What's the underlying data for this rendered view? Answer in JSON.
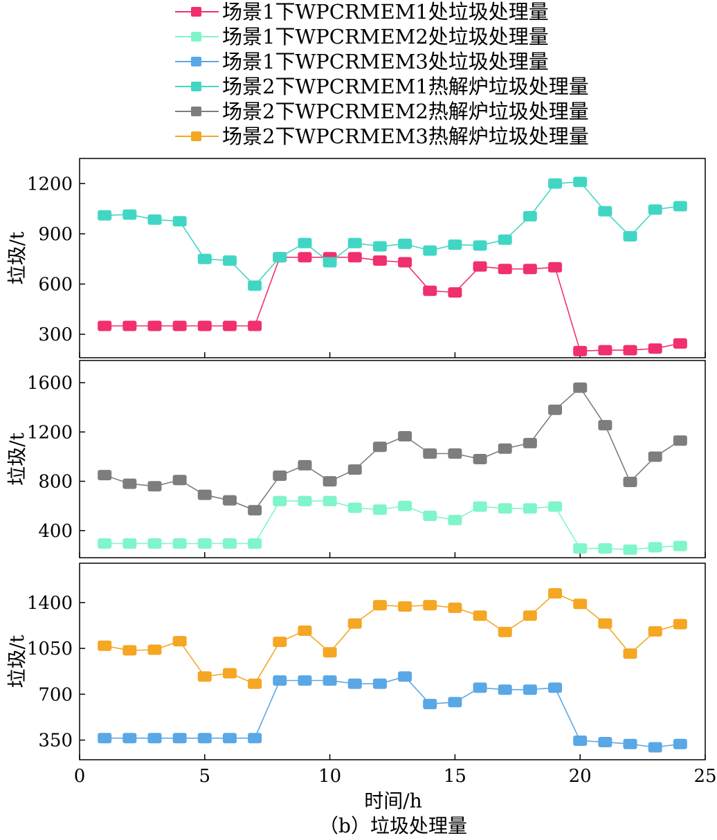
{
  "caption": "（b）垃圾处理量",
  "chart_data": {
    "type": "line",
    "xlabel": "时间/h",
    "x": [
      1,
      2,
      3,
      4,
      5,
      6,
      7,
      8,
      9,
      10,
      11,
      12,
      13,
      14,
      15,
      16,
      17,
      18,
      19,
      20,
      21,
      22,
      23,
      24
    ],
    "xlim": [
      0,
      25
    ],
    "xticks": [
      "0",
      "5",
      "10",
      "15",
      "20",
      "25"
    ],
    "legend": [
      {
        "name": "场景1下WPCRMEM1处垃圾处理量",
        "color": "#f0306c"
      },
      {
        "name": "场景1下WPCRMEM2处垃圾处理量",
        "color": "#7ff5c9"
      },
      {
        "name": "场景1下WPCRMEM3处垃圾处理量",
        "color": "#5aa7e6"
      },
      {
        "name": "场景2下WPCRMEM1热解炉垃圾处理量",
        "color": "#41d6c4"
      },
      {
        "name": "场景2下WPCRMEM2热解炉垃圾处理量",
        "color": "#7d7d7d"
      },
      {
        "name": "场景2下WPCRMEM3热解炉垃圾处理量",
        "color": "#f5a623"
      }
    ],
    "panels": [
      {
        "ylabel": "垃圾/t",
        "ylim": [
          160,
          1350
        ],
        "yticks": [
          "300",
          "600",
          "900",
          "1200"
        ],
        "series": [
          {
            "name": "场景1下WPCRMEM1处垃圾处理量",
            "color": "#f0306c",
            "values": [
              350,
              350,
              350,
              350,
              350,
              350,
              350,
              760,
              760,
              760,
              760,
              740,
              730,
              560,
              550,
              705,
              690,
              690,
              700,
              200,
              205,
              205,
              215,
              245
            ]
          },
          {
            "name": "场景2下WPCRMEM1热解炉垃圾处理量",
            "color": "#41d6c4",
            "values": [
              1010,
              1015,
              985,
              975,
              750,
              740,
              590,
              760,
              845,
              730,
              845,
              825,
              840,
              800,
              835,
              830,
              865,
              1005,
              1200,
              1210,
              1035,
              885,
              1045,
              1065
            ]
          }
        ]
      },
      {
        "ylabel": "垃圾/t",
        "ylim": [
          180,
          1780
        ],
        "yticks": [
          "400",
          "800",
          "1200",
          "1600"
        ],
        "series": [
          {
            "name": "场景1下WPCRMEM2处垃圾处理量",
            "color": "#7ff5c9",
            "values": [
              295,
              295,
              295,
              295,
              295,
              295,
              295,
              640,
              640,
              640,
              585,
              570,
              600,
              520,
              485,
              595,
              580,
              580,
              595,
              255,
              255,
              245,
              265,
              275
            ]
          },
          {
            "name": "场景2下WPCRMEM2热解炉垃圾处理量",
            "color": "#7d7d7d",
            "values": [
              850,
              780,
              760,
              810,
              690,
              645,
              565,
              845,
              930,
              800,
              895,
              1080,
              1165,
              1025,
              1025,
              980,
              1065,
              1110,
              1380,
              1560,
              1255,
              795,
              1000,
              1130
            ]
          }
        ]
      },
      {
        "ylabel": "垃圾/t",
        "ylim": [
          200,
          1700
        ],
        "yticks": [
          "350",
          "700",
          "1050",
          "1400"
        ],
        "series": [
          {
            "name": "场景1下WPCRMEM3处垃圾处理量",
            "color": "#5aa7e6",
            "values": [
              365,
              365,
              365,
              365,
              365,
              365,
              365,
              805,
              805,
              805,
              780,
              780,
              835,
              625,
              640,
              750,
              735,
              735,
              750,
              345,
              335,
              320,
              295,
              320
            ]
          },
          {
            "name": "场景2下WPCRMEM3热解炉垃圾处理量",
            "color": "#f5a623",
            "values": [
              1070,
              1035,
              1040,
              1105,
              835,
              860,
              780,
              1100,
              1185,
              1020,
              1240,
              1380,
              1370,
              1380,
              1360,
              1300,
              1175,
              1300,
              1470,
              1390,
              1240,
              1010,
              1180,
              1235
            ]
          }
        ]
      }
    ]
  }
}
